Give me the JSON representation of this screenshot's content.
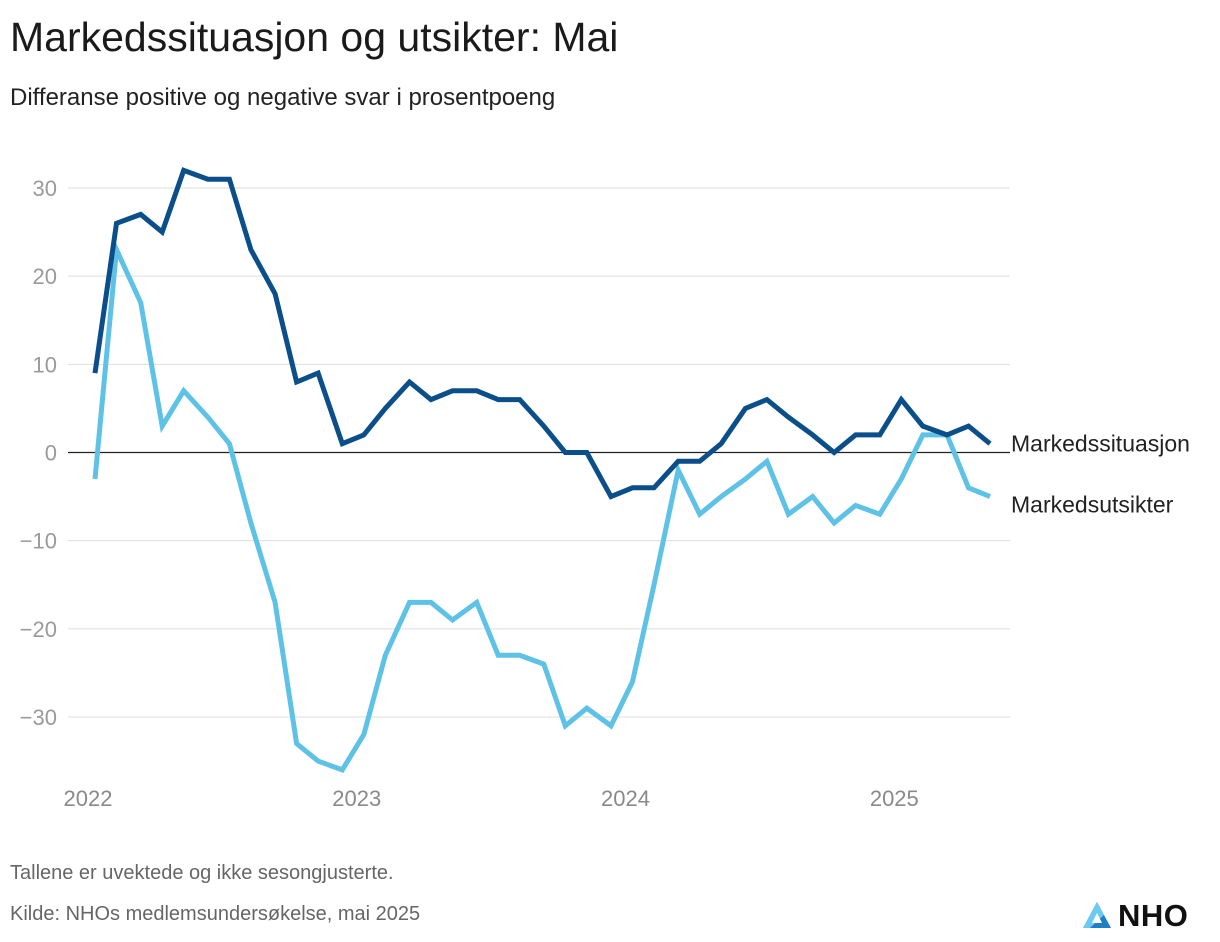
{
  "header": {
    "title": "Markedssituasjon og utsikter: Mai",
    "subtitle": "Differanse positive og negative svar i prosentpoeng"
  },
  "footer": {
    "note": "Tallene er uvektede og ikke sesongjusterte.",
    "source": "Kilde: NHOs medlemsundersøkelse, mai 2025",
    "logo_text": "NHO"
  },
  "colors": {
    "markedssituasjon": "#0b4f8a",
    "markedsutsikter": "#5ec2e6",
    "grid": "#dddddd",
    "zero": "#222222"
  },
  "chart_data": {
    "type": "line",
    "title": "Markedssituasjon og utsikter: Mai",
    "subtitle": "Differanse positive og negative svar i prosentpoeng",
    "xlabel": "",
    "ylabel": "",
    "ylim": [
      -37,
      34
    ],
    "yticks": [
      30,
      20,
      10,
      0,
      -10,
      -20,
      -30
    ],
    "ytick_labels": [
      "30",
      "20",
      "10",
      "0",
      "−10",
      "−20",
      "−30"
    ],
    "xlim": [
      2021.98,
      2025.41
    ],
    "xticks": [
      {
        "value": 2022,
        "label": "2022"
      },
      {
        "value": 2023,
        "label": "2023"
      },
      {
        "value": 2024,
        "label": "2024"
      },
      {
        "value": 2025,
        "label": "2025"
      }
    ],
    "grid": true,
    "legend": "inline-right",
    "series": [
      {
        "name": "Markedssituasjon",
        "color": "#0b4f8a",
        "points": [
          [
            2022.0,
            9
          ],
          [
            2022.08,
            26
          ],
          [
            2022.17,
            27
          ],
          [
            2022.25,
            25
          ],
          [
            2022.33,
            32
          ],
          [
            2022.42,
            31
          ],
          [
            2022.5,
            31
          ],
          [
            2022.58,
            23
          ],
          [
            2022.67,
            18
          ],
          [
            2022.75,
            8
          ],
          [
            2022.83,
            9
          ],
          [
            2022.92,
            1
          ],
          [
            2023.0,
            2
          ],
          [
            2023.08,
            5
          ],
          [
            2023.17,
            8
          ],
          [
            2023.25,
            6
          ],
          [
            2023.33,
            7
          ],
          [
            2023.42,
            7
          ],
          [
            2023.5,
            6
          ],
          [
            2023.58,
            6
          ],
          [
            2023.67,
            3
          ],
          [
            2023.75,
            0
          ],
          [
            2023.83,
            0
          ],
          [
            2023.92,
            -5
          ],
          [
            2024.0,
            -4
          ],
          [
            2024.08,
            -4
          ],
          [
            2024.17,
            -1
          ],
          [
            2024.25,
            -1
          ],
          [
            2024.33,
            1
          ],
          [
            2024.42,
            5
          ],
          [
            2024.5,
            6
          ],
          [
            2024.58,
            4
          ],
          [
            2024.67,
            2
          ],
          [
            2024.75,
            0
          ],
          [
            2024.83,
            2
          ],
          [
            2024.92,
            2
          ],
          [
            2025.0,
            6
          ],
          [
            2025.08,
            3
          ],
          [
            2025.17,
            2
          ],
          [
            2025.25,
            3
          ],
          [
            2025.33,
            1
          ]
        ]
      },
      {
        "name": "Markedsutsikter",
        "color": "#5ec2e6",
        "points": [
          [
            2022.0,
            -3
          ],
          [
            2022.08,
            23
          ],
          [
            2022.17,
            17
          ],
          [
            2022.25,
            3
          ],
          [
            2022.33,
            7
          ],
          [
            2022.42,
            4
          ],
          [
            2022.5,
            1
          ],
          [
            2022.58,
            -8
          ],
          [
            2022.67,
            -17
          ],
          [
            2022.75,
            -33
          ],
          [
            2022.83,
            -35
          ],
          [
            2022.92,
            -36
          ],
          [
            2023.0,
            -32
          ],
          [
            2023.08,
            -23
          ],
          [
            2023.17,
            -17
          ],
          [
            2023.25,
            -17
          ],
          [
            2023.33,
            -19
          ],
          [
            2023.42,
            -17
          ],
          [
            2023.5,
            -23
          ],
          [
            2023.58,
            -23
          ],
          [
            2023.67,
            -24
          ],
          [
            2023.75,
            -31
          ],
          [
            2023.83,
            -29
          ],
          [
            2023.92,
            -31
          ],
          [
            2024.0,
            -26
          ],
          [
            2024.08,
            -15
          ],
          [
            2024.17,
            -2
          ],
          [
            2024.25,
            -7
          ],
          [
            2024.33,
            -5
          ],
          [
            2024.42,
            -3
          ],
          [
            2024.5,
            -1
          ],
          [
            2024.58,
            -7
          ],
          [
            2024.67,
            -5
          ],
          [
            2024.75,
            -8
          ],
          [
            2024.83,
            -6
          ],
          [
            2024.92,
            -7
          ],
          [
            2025.0,
            -3
          ],
          [
            2025.08,
            2
          ],
          [
            2025.17,
            2
          ],
          [
            2025.25,
            -4
          ],
          [
            2025.33,
            -5
          ]
        ]
      }
    ]
  }
}
